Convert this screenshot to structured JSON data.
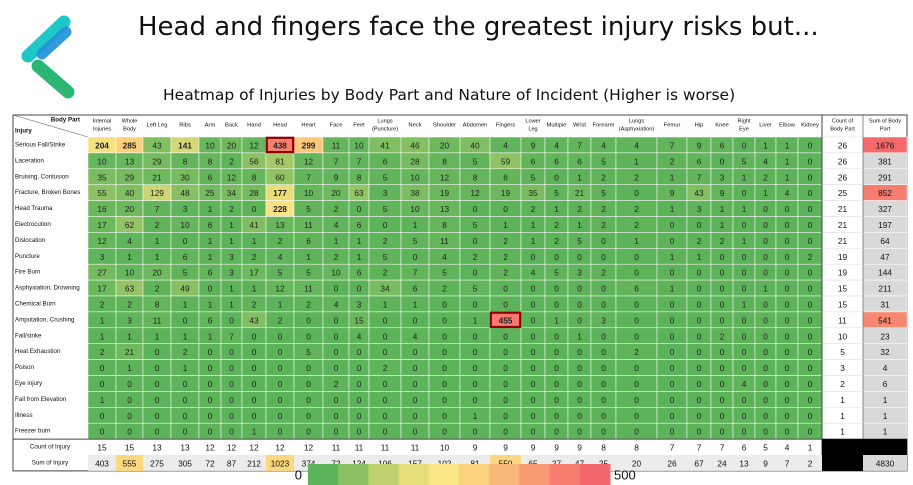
{
  "header": {
    "headline": "Head and fingers face the greatest injury risks but...",
    "logo_icon": "arrow-logo-icon"
  },
  "chart_data": {
    "type": "heatmap",
    "title": "Heatmap of Injuries by Body Part and Nature of Incident (Higher is worse)",
    "corner_top": "Body Part",
    "corner_bottom": "Injury",
    "columns": [
      {
        "line1": "Internal",
        "line2": "Injuries"
      },
      {
        "line1": "Whole",
        "line2": "Body"
      },
      {
        "line1": "Left Leg",
        "line2": ""
      },
      {
        "line1": "Ribs",
        "line2": ""
      },
      {
        "line1": "Arm",
        "line2": ""
      },
      {
        "line1": "Back",
        "line2": ""
      },
      {
        "line1": "Hand",
        "line2": ""
      },
      {
        "line1": "Head",
        "line2": ""
      },
      {
        "line1": "Heart",
        "line2": ""
      },
      {
        "line1": "Face",
        "line2": ""
      },
      {
        "line1": "Feet",
        "line2": ""
      },
      {
        "line1": "Lungs",
        "line2": "(Puncture)"
      },
      {
        "line1": "Neck",
        "line2": ""
      },
      {
        "line1": "Shoulder",
        "line2": ""
      },
      {
        "line1": "Abdomen",
        "line2": ""
      },
      {
        "line1": "Fingers",
        "line2": ""
      },
      {
        "line1": "Lower",
        "line2": "Leg"
      },
      {
        "line1": "Multiple",
        "line2": ""
      },
      {
        "line1": "Wrist",
        "line2": ""
      },
      {
        "line1": "Forearm",
        "line2": ""
      },
      {
        "line1": "Lungs",
        "line2": "(Asphyxiation)"
      },
      {
        "line1": "Femur",
        "line2": ""
      },
      {
        "line1": "Hip",
        "line2": ""
      },
      {
        "line1": "Knee",
        "line2": ""
      },
      {
        "line1": "Right",
        "line2": "Eye"
      },
      {
        "line1": "Liver",
        "line2": ""
      },
      {
        "line1": "Elbow",
        "line2": ""
      },
      {
        "line1": "Kidney",
        "line2": ""
      }
    ],
    "rows": [
      {
        "label": "Serious Fall/Strike",
        "values": [
          204,
          285,
          43,
          141,
          10,
          20,
          12,
          438,
          299,
          11,
          10,
          41,
          46,
          20,
          40,
          4,
          9,
          4,
          7,
          4,
          4,
          7,
          9,
          6,
          0,
          1,
          1,
          0
        ],
        "count": 26,
        "sum": 1676
      },
      {
        "label": "Laceration",
        "values": [
          10,
          13,
          29,
          8,
          8,
          2,
          56,
          81,
          12,
          7,
          7,
          6,
          28,
          8,
          5,
          59,
          6,
          6,
          6,
          5,
          1,
          2,
          6,
          0,
          5,
          4,
          1,
          0
        ],
        "count": 26,
        "sum": 381
      },
      {
        "label": "Bruising, Contusion",
        "values": [
          35,
          29,
          21,
          30,
          6,
          12,
          8,
          60,
          7,
          9,
          8,
          5,
          10,
          12,
          8,
          6,
          5,
          0,
          1,
          2,
          2,
          1,
          7,
          3,
          1,
          2,
          1,
          0
        ],
        "count": 26,
        "sum": 291
      },
      {
        "label": "Fracture, Broken Bones",
        "values": [
          55,
          40,
          129,
          48,
          25,
          34,
          28,
          177,
          10,
          20,
          63,
          3,
          38,
          19,
          12,
          19,
          35,
          5,
          21,
          5,
          0,
          9,
          43,
          9,
          0,
          1,
          4,
          0
        ],
        "count": 25,
        "sum": 852
      },
      {
        "label": "Head Trauma",
        "values": [
          16,
          20,
          7,
          3,
          1,
          2,
          0,
          228,
          5,
          2,
          0,
          5,
          10,
          13,
          0,
          0,
          2,
          1,
          2,
          2,
          2,
          1,
          3,
          1,
          1,
          0,
          0,
          0
        ],
        "count": 21,
        "sum": 327
      },
      {
        "label": "Electrocution",
        "values": [
          17,
          62,
          2,
          10,
          6,
          1,
          41,
          13,
          11,
          4,
          6,
          0,
          1,
          8,
          5,
          1,
          1,
          2,
          1,
          2,
          2,
          0,
          0,
          1,
          0,
          0,
          0,
          0
        ],
        "count": 21,
        "sum": 197
      },
      {
        "label": "Dislocation",
        "values": [
          12,
          4,
          1,
          0,
          1,
          1,
          1,
          2,
          6,
          1,
          1,
          2,
          5,
          11,
          0,
          2,
          1,
          2,
          5,
          0,
          1,
          0,
          2,
          2,
          1,
          0,
          0,
          0
        ],
        "count": 21,
        "sum": 64
      },
      {
        "label": "Puncture",
        "values": [
          3,
          1,
          1,
          6,
          1,
          3,
          2,
          4,
          1,
          2,
          1,
          5,
          0,
          4,
          2,
          2,
          0,
          0,
          0,
          0,
          0,
          1,
          1,
          0,
          0,
          0,
          0,
          2
        ],
        "count": 19,
        "sum": 47
      },
      {
        "label": "Fire Burn",
        "values": [
          27,
          10,
          20,
          5,
          6,
          3,
          17,
          5,
          5,
          10,
          6,
          2,
          7,
          5,
          0,
          2,
          4,
          5,
          3,
          2,
          0,
          0,
          0,
          0,
          0,
          0,
          0,
          0
        ],
        "count": 19,
        "sum": 144
      },
      {
        "label": "Asphyxiation, Drowning",
        "values": [
          17,
          63,
          2,
          49,
          0,
          1,
          1,
          12,
          11,
          0,
          0,
          34,
          6,
          2,
          5,
          0,
          0,
          0,
          0,
          0,
          6,
          1,
          0,
          0,
          0,
          1,
          0,
          0
        ],
        "count": 15,
        "sum": 211
      },
      {
        "label": "Chemical Burn",
        "values": [
          2,
          2,
          8,
          1,
          1,
          1,
          2,
          1,
          2,
          4,
          3,
          1,
          1,
          0,
          0,
          0,
          0,
          0,
          0,
          0,
          0,
          0,
          0,
          0,
          1,
          0,
          0,
          0
        ],
        "count": 15,
        "sum": 31
      },
      {
        "label": "Amputation, Crushing",
        "values": [
          1,
          3,
          11,
          0,
          6,
          0,
          43,
          2,
          0,
          0,
          15,
          0,
          0,
          0,
          1,
          455,
          0,
          1,
          0,
          3,
          0,
          0,
          0,
          0,
          0,
          0,
          0,
          0
        ],
        "count": 11,
        "sum": 541
      },
      {
        "label": "Fall/strike",
        "values": [
          1,
          1,
          1,
          1,
          1,
          7,
          0,
          0,
          0,
          0,
          4,
          0,
          4,
          0,
          0,
          0,
          0,
          0,
          1,
          0,
          0,
          0,
          0,
          2,
          0,
          0,
          0,
          0
        ],
        "count": 10,
        "sum": 23
      },
      {
        "label": "Heat Exhaustion",
        "values": [
          2,
          21,
          0,
          2,
          0,
          0,
          0,
          0,
          5,
          0,
          0,
          0,
          0,
          0,
          0,
          0,
          0,
          0,
          0,
          0,
          2,
          0,
          0,
          0,
          0,
          0,
          0,
          0
        ],
        "count": 5,
        "sum": 32
      },
      {
        "label": "Poison",
        "values": [
          0,
          1,
          0,
          1,
          0,
          0,
          0,
          0,
          0,
          0,
          0,
          2,
          0,
          0,
          0,
          0,
          0,
          0,
          0,
          0,
          0,
          0,
          0,
          0,
          0,
          0,
          0,
          0
        ],
        "count": 3,
        "sum": 4
      },
      {
        "label": "Eye injury",
        "values": [
          0,
          0,
          0,
          0,
          0,
          0,
          0,
          0,
          0,
          2,
          0,
          0,
          0,
          0,
          0,
          0,
          0,
          0,
          0,
          0,
          0,
          0,
          0,
          0,
          4,
          0,
          0,
          0
        ],
        "count": 2,
        "sum": 6
      },
      {
        "label": "Fall from Elevation",
        "values": [
          1,
          0,
          0,
          0,
          0,
          0,
          0,
          0,
          0,
          0,
          0,
          0,
          0,
          0,
          0,
          0,
          0,
          0,
          0,
          0,
          0,
          0,
          0,
          0,
          0,
          0,
          0,
          0
        ],
        "count": 1,
        "sum": 1
      },
      {
        "label": "Illness",
        "values": [
          0,
          0,
          0,
          0,
          0,
          0,
          0,
          0,
          0,
          0,
          0,
          0,
          0,
          0,
          1,
          0,
          0,
          0,
          0,
          0,
          0,
          0,
          0,
          0,
          0,
          0,
          0,
          0
        ],
        "count": 1,
        "sum": 1
      },
      {
        "label": "Freezer burn",
        "values": [
          0,
          0,
          0,
          0,
          0,
          0,
          1,
          0,
          0,
          0,
          0,
          0,
          0,
          0,
          0,
          0,
          0,
          0,
          0,
          0,
          0,
          0,
          0,
          0,
          0,
          0,
          0,
          0
        ],
        "count": 1,
        "sum": 1
      }
    ],
    "count_column_header": {
      "line1": "Count of",
      "line2": "Body Part"
    },
    "sum_column_header": {
      "line1": "Sum of Body",
      "line2": "Part"
    },
    "count_row": {
      "label": "Count of Injury",
      "values": [
        15,
        15,
        13,
        13,
        12,
        12,
        12,
        12,
        12,
        11,
        11,
        11,
        11,
        10,
        9,
        9,
        9,
        9,
        9,
        8,
        8,
        7,
        7,
        7,
        6,
        5,
        4,
        1
      ]
    },
    "sum_row": {
      "label": "Sum of Injury",
      "values": [
        403,
        555,
        275,
        305,
        72,
        87,
        212,
        1023,
        374,
        72,
        124,
        106,
        157,
        102,
        81,
        550,
        65,
        27,
        47,
        25,
        20,
        26,
        67,
        24,
        13,
        9,
        7,
        2
      ]
    },
    "grand_total": 4830,
    "highlighted_cells": [
      {
        "row": "Serious Fall/Strike",
        "column": "Head",
        "value": 438
      },
      {
        "row": "Amputation, Crushing",
        "column": "Fingers",
        "value": 455
      }
    ],
    "color_scale": {
      "min": 0,
      "max": 500,
      "min_label": "0",
      "max_label": "500",
      "stops": [
        "#5db35a",
        "#8cc264",
        "#bfd16f",
        "#e6dd7a",
        "#fbe584",
        "#fbd27d",
        "#f9b879",
        "#f79a73",
        "#f67c6f",
        "#f4686b"
      ]
    },
    "colors": {
      "highlight_border": "#8b0000",
      "sum_column_fill": "#d9d9d9",
      "grand_corner_fill": "#000000"
    }
  }
}
